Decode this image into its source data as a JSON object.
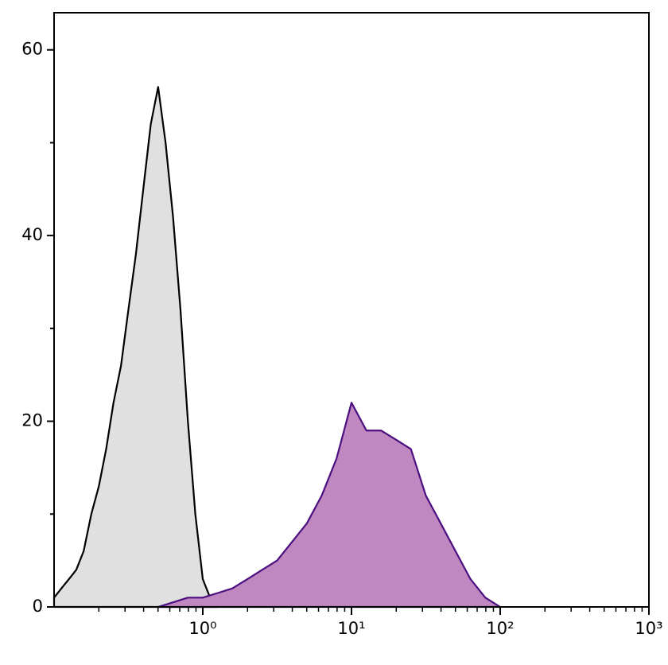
{
  "chart_data": {
    "type": "area",
    "xscale": "log",
    "xlim": [
      0.1,
      1000
    ],
    "ylim": [
      0,
      64
    ],
    "xticks": [
      {
        "value": 1,
        "label": "10⁰"
      },
      {
        "value": 10,
        "label": "10¹"
      },
      {
        "value": 100,
        "label": "10²"
      },
      {
        "value": 1000,
        "label": "10³"
      }
    ],
    "xticks_minor": [
      0.2,
      0.3,
      0.4,
      0.5,
      0.6,
      0.7,
      0.8,
      0.9,
      2,
      3,
      4,
      5,
      6,
      7,
      8,
      9,
      20,
      30,
      40,
      50,
      60,
      70,
      80,
      90,
      200,
      300,
      400,
      500,
      600,
      700,
      800,
      900
    ],
    "yticks": [
      0,
      20,
      40,
      60
    ],
    "yticks_minor": [
      10,
      30,
      50
    ],
    "series": [
      {
        "color": "#000000",
        "fill": "#e0e0e0",
        "x": [
          0.1,
          0.112,
          0.126,
          0.141,
          0.158,
          0.178,
          0.2,
          0.224,
          0.251,
          0.282,
          0.316,
          0.355,
          0.398,
          0.447,
          0.501,
          0.562,
          0.631,
          0.708,
          0.794,
          0.891,
          1,
          1.12,
          1.26
        ],
        "values": [
          1,
          2,
          3,
          4,
          6,
          10,
          13,
          17,
          22,
          26,
          32,
          38,
          45,
          52,
          56,
          50,
          42,
          32,
          20,
          10,
          3,
          1,
          0
        ]
      },
      {
        "color": "#4b0f80",
        "fill": "#bf88c0",
        "x": [
          0.501,
          0.631,
          0.794,
          1,
          1.26,
          1.58,
          2,
          2.51,
          3.16,
          3.98,
          5.01,
          6.31,
          7.94,
          10,
          12.6,
          15.8,
          20,
          25.1,
          31.6,
          39.8,
          50.1,
          63.1,
          79.4,
          100
        ],
        "values": [
          0,
          0.5,
          1,
          1,
          1.5,
          2,
          3,
          4,
          5,
          7,
          9,
          12,
          16,
          22,
          19,
          19,
          18,
          17,
          12,
          9,
          6,
          3,
          1,
          0
        ]
      }
    ]
  }
}
